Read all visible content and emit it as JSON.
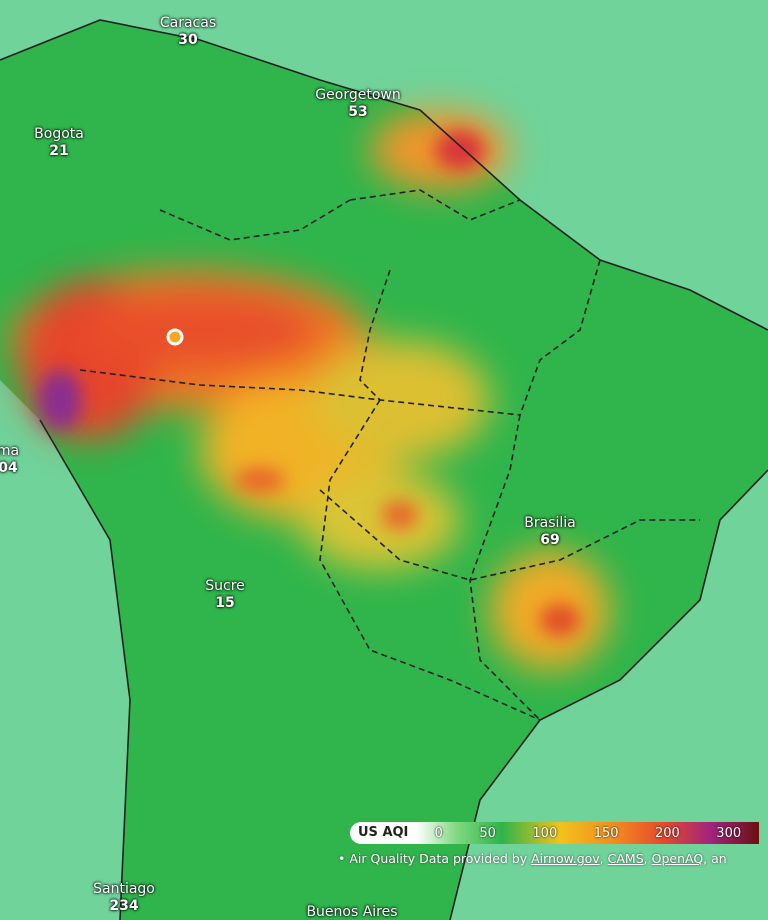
{
  "cities": [
    {
      "name": "Caracas",
      "aqi": "30"
    },
    {
      "name": "Bogota",
      "aqi": "21"
    },
    {
      "name": "Georgetown",
      "aqi": "53"
    },
    {
      "name": "ma",
      "aqi": "04"
    },
    {
      "name": "Brasilia",
      "aqi": "69"
    },
    {
      "name": "Sucre",
      "aqi": "15"
    },
    {
      "name": "Santiago",
      "aqi": "234"
    },
    {
      "name": "Buenos Aires"
    }
  ],
  "legend": {
    "title": "US AQI",
    "ticks": [
      "0",
      "50",
      "100",
      "150",
      "200",
      "300"
    ]
  },
  "attribution": {
    "prefix": "Air Quality Data provided by",
    "links": [
      "Airnow.gov",
      "CAMS",
      "OpenAQ"
    ],
    "separator": ",",
    "suffix": "an"
  }
}
